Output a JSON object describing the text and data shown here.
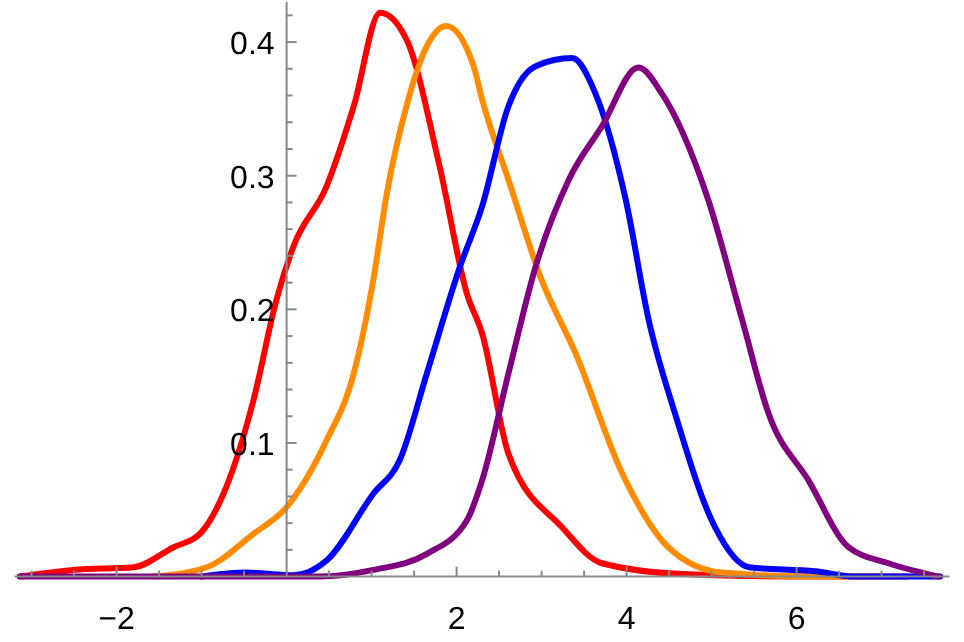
{
  "chart_data": {
    "type": "line",
    "xlim": [
      -3.2,
      7.8
    ],
    "ylim": [
      0,
      0.43
    ],
    "xticks": [
      {
        "value": -3,
        "label": null
      },
      {
        "value": -2.5,
        "label": null
      },
      -2,
      {
        "value": -1.5,
        "label": null
      },
      {
        "value": -1,
        "label": null
      },
      {
        "value": -0.5,
        "label": null
      },
      {
        "value": 0.5,
        "label": null
      },
      {
        "value": 1,
        "label": null
      },
      {
        "value": 1.5,
        "label": null
      },
      2,
      {
        "value": 2.5,
        "label": null
      },
      {
        "value": 3,
        "label": null
      },
      {
        "value": 3.5,
        "label": null
      },
      4,
      {
        "value": 4.5,
        "label": null
      },
      {
        "value": 5,
        "label": null
      },
      {
        "value": 5.5,
        "label": null
      },
      6,
      {
        "value": 6.5,
        "label": null
      },
      {
        "value": 7,
        "label": null
      },
      {
        "value": 7.5,
        "label": null
      }
    ],
    "yticks": [
      {
        "value": 0.02,
        "label": null
      },
      {
        "value": 0.04,
        "label": null
      },
      {
        "value": 0.06,
        "label": null
      },
      {
        "value": 0.08,
        "label": null
      },
      0.1,
      {
        "value": 0.12,
        "label": null
      },
      {
        "value": 0.14,
        "label": null
      },
      {
        "value": 0.16,
        "label": null
      },
      {
        "value": 0.18,
        "label": null
      },
      0.2,
      {
        "value": 0.22,
        "label": null
      },
      {
        "value": 0.24,
        "label": null
      },
      {
        "value": 0.26,
        "label": null
      },
      {
        "value": 0.28,
        "label": null
      },
      0.3,
      {
        "value": 0.32,
        "label": null
      },
      {
        "value": 0.34,
        "label": null
      },
      {
        "value": 0.36,
        "label": null
      },
      {
        "value": 0.38,
        "label": null
      },
      0.4,
      {
        "value": 0.42,
        "label": null
      }
    ],
    "series": [
      {
        "color": "#ff0000",
        "x": [
          -3.14,
          -2.51,
          -1.8,
          -1.33,
          -1.02,
          -0.71,
          -0.39,
          -0.12,
          0.08,
          0.47,
          0.79,
          1.1,
          1.41,
          1.8,
          2.12,
          2.3,
          2.61,
          3.24,
          3.71,
          4.65,
          6.22,
          7.3
        ],
        "values": [
          0,
          0.005,
          0.007,
          0.022,
          0.032,
          0.067,
          0.132,
          0.207,
          0.247,
          0.292,
          0.352,
          0.422,
          0.402,
          0.307,
          0.212,
          0.182,
          0.092,
          0.037,
          0.01,
          0.002,
          0,
          0
        ]
      },
      {
        "color": "#ff8c00",
        "x": [
          -1.57,
          -0.94,
          -0.39,
          0,
          0.47,
          0.79,
          1.02,
          1.18,
          1.41,
          1.65,
          1.88,
          2.2,
          2.3,
          2.61,
          3.0,
          3.4,
          3.95,
          4.49,
          5.12,
          6.22,
          7.0
        ],
        "values": [
          0,
          0.007,
          0.032,
          0.052,
          0.102,
          0.152,
          0.222,
          0.287,
          0.352,
          0.397,
          0.412,
          0.382,
          0.357,
          0.297,
          0.222,
          0.167,
          0.077,
          0.022,
          0.003,
          0,
          0
        ]
      },
      {
        "color": "#0000ff",
        "x": [
          -1.0,
          -0.47,
          0.08,
          0.47,
          1.02,
          1.33,
          1.65,
          2.04,
          2.3,
          2.61,
          2.93,
          3.36,
          3.63,
          3.99,
          4.26,
          4.57,
          5.04,
          5.44,
          6.22,
          6.69,
          7.69
        ],
        "values": [
          0,
          0.003,
          0.001,
          0.012,
          0.062,
          0.087,
          0.152,
          0.232,
          0.277,
          0.352,
          0.382,
          0.388,
          0.362,
          0.282,
          0.192,
          0.122,
          0.037,
          0.007,
          0.004,
          0,
          0
        ]
      },
      {
        "color": "#800080",
        "x": [
          -3.14,
          0.39,
          1.02,
          1.65,
          2.12,
          2.3,
          2.61,
          2.93,
          3.32,
          3.71,
          4.14,
          4.41,
          4.96,
          5.36,
          5.67,
          6.14,
          6.61,
          7.08,
          7.67
        ],
        "values": [
          0,
          0,
          0.005,
          0.017,
          0.042,
          0.072,
          0.152,
          0.232,
          0.297,
          0.337,
          0.381,
          0.362,
          0.282,
          0.192,
          0.122,
          0.072,
          0.022,
          0.01,
          0
        ]
      }
    ]
  }
}
